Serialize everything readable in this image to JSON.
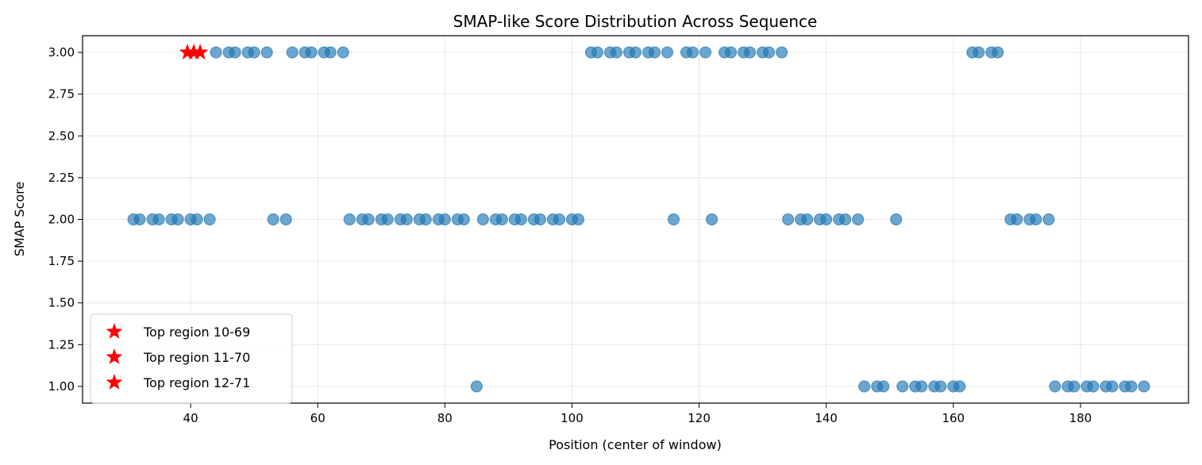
{
  "chart_data": {
    "type": "scatter",
    "title": "SMAP-like Score Distribution Across Sequence",
    "xlabel": "Position (center of window)",
    "ylabel": "SMAP Score",
    "xlim": [
      23,
      197
    ],
    "ylim": [
      0.9,
      3.1
    ],
    "xticks": [
      40,
      60,
      80,
      100,
      120,
      140,
      160,
      180
    ],
    "yticks": [
      1.0,
      1.25,
      1.5,
      1.75,
      2.0,
      2.25,
      2.5,
      2.75,
      3.0
    ],
    "grid": true,
    "legend_position": "lower-left",
    "colors": {
      "scores": "#1f77b4",
      "top": "#ff0000"
    },
    "series": [
      {
        "marker": "circle",
        "x": [
          31,
          32,
          34,
          35,
          37,
          38,
          40,
          41,
          43,
          44,
          46,
          47,
          49,
          50,
          52,
          53,
          55,
          56,
          58,
          59,
          61,
          62,
          64,
          65,
          67,
          68,
          70,
          71,
          73,
          74,
          76,
          77,
          79,
          80,
          82,
          83,
          85,
          86,
          88,
          89,
          91,
          92,
          94,
          95,
          97,
          98,
          100,
          101,
          103,
          104,
          106,
          107,
          109,
          110,
          112,
          113,
          115,
          116,
          118,
          119,
          121,
          122,
          124,
          125,
          127,
          128,
          130,
          131,
          133,
          134,
          136,
          137,
          139,
          140,
          142,
          143,
          145,
          146,
          148,
          149,
          151,
          152,
          154,
          155,
          157,
          158,
          160,
          161,
          163,
          164,
          166,
          167,
          169,
          170,
          172,
          173,
          175,
          176,
          178,
          179,
          181,
          182,
          184,
          185,
          187,
          188,
          190
        ],
        "y": [
          2,
          2,
          2,
          2,
          2,
          2,
          2,
          2,
          2,
          3,
          3,
          3,
          3,
          3,
          3,
          2,
          2,
          3,
          3,
          3,
          3,
          3,
          3,
          2,
          2,
          2,
          2,
          2,
          2,
          2,
          2,
          2,
          2,
          2,
          2,
          2,
          1,
          2,
          2,
          2,
          2,
          2,
          2,
          2,
          2,
          2,
          2,
          2,
          3,
          3,
          3,
          3,
          3,
          3,
          3,
          3,
          3,
          2,
          3,
          3,
          3,
          2,
          3,
          3,
          3,
          3,
          3,
          3,
          3,
          2,
          2,
          2,
          2,
          2,
          2,
          2,
          2,
          1,
          1,
          1,
          2,
          1,
          1,
          1,
          1,
          1,
          1,
          1,
          3,
          3,
          3,
          3,
          2,
          2,
          2,
          2,
          2,
          1,
          1,
          1,
          1,
          1,
          1,
          1,
          1,
          1,
          1
        ]
      },
      {
        "name": "Top region 10-69",
        "marker": "star",
        "x": [
          39.5
        ],
        "y": [
          3
        ]
      },
      {
        "name": "Top region 11-70",
        "marker": "star",
        "x": [
          40.5
        ],
        "y": [
          3
        ]
      },
      {
        "name": "Top region 12-71",
        "marker": "star",
        "x": [
          41.5
        ],
        "y": [
          3
        ]
      }
    ]
  }
}
